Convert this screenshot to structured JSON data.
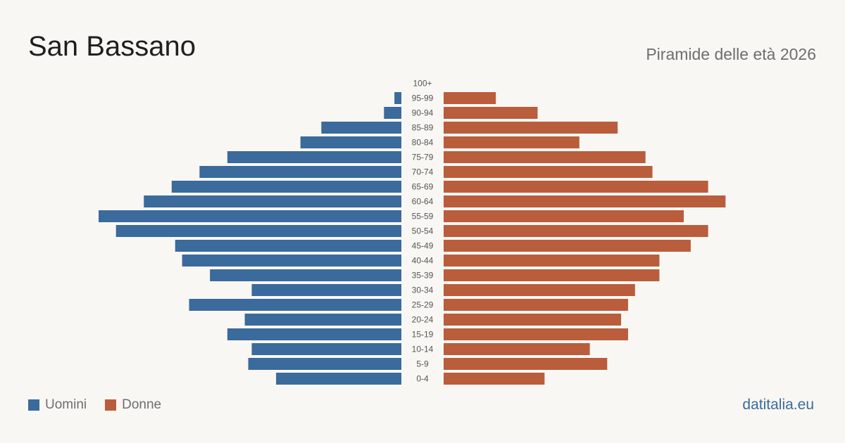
{
  "header": {
    "title": "San Bassano",
    "subtitle": "Piramide delle età 2026"
  },
  "legend": {
    "men_label": "Uomini",
    "women_label": "Donne"
  },
  "footer": {
    "brand": "datitalia.eu"
  },
  "colors": {
    "men": "#3b6a9c",
    "women": "#b95d3d",
    "tick_text": "#555555"
  },
  "chart_data": {
    "type": "bar",
    "orientation": "horizontal-pyramid",
    "categories": [
      "100+",
      "95-99",
      "90-94",
      "85-89",
      "80-84",
      "75-79",
      "70-74",
      "65-69",
      "60-64",
      "55-59",
      "50-54",
      "45-49",
      "40-44",
      "35-39",
      "30-34",
      "25-29",
      "20-24",
      "15-19",
      "10-14",
      "5-9",
      "0-4"
    ],
    "series": [
      {
        "name": "Uomini",
        "values": [
          0,
          2,
          5,
          23,
          29,
          50,
          58,
          66,
          74,
          87,
          82,
          65,
          63,
          55,
          43,
          61,
          45,
          50,
          43,
          44,
          36
        ]
      },
      {
        "name": "Donne",
        "values": [
          0,
          15,
          27,
          50,
          39,
          58,
          60,
          76,
          81,
          69,
          76,
          71,
          62,
          62,
          55,
          53,
          51,
          53,
          42,
          47,
          29
        ]
      }
    ],
    "xlim": [
      0,
      87
    ],
    "grid": false,
    "legend_position": "bottom-left"
  }
}
